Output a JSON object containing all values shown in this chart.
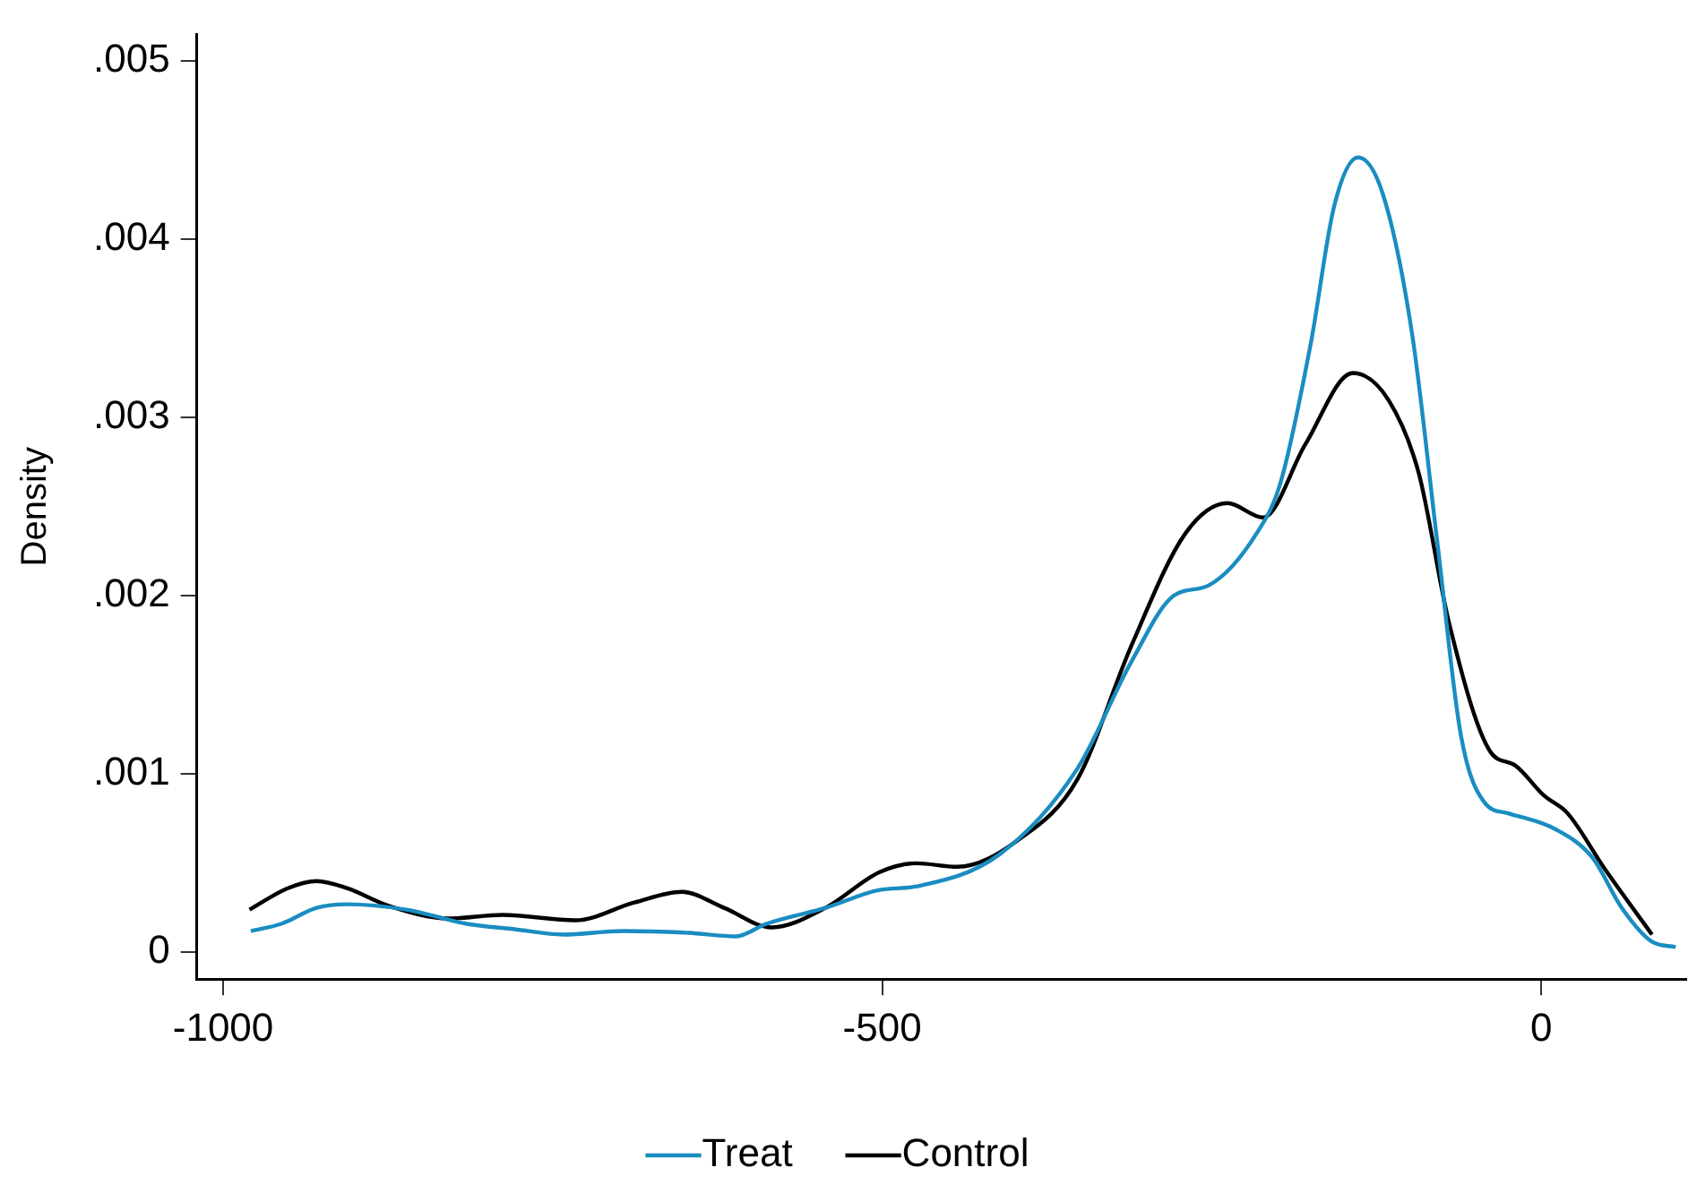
{
  "chart_data": {
    "type": "line",
    "ylabel": "Density",
    "legend": "bottom",
    "grid": false,
    "marker": "none",
    "line_style": "solid",
    "xlim": [
      -1020,
      110
    ],
    "xticks": [
      -1000,
      -500,
      0
    ],
    "ylim": [
      -0.00015,
      0.00515
    ],
    "yticks": [
      {
        "value": 0,
        "label": "0"
      },
      {
        "value": 0.001,
        "label": ".001"
      },
      {
        "value": 0.002,
        "label": ".002"
      },
      {
        "value": 0.003,
        "label": ".003"
      },
      {
        "value": 0.004,
        "label": ".004"
      },
      {
        "value": 0.005,
        "label": ".005"
      }
    ],
    "series": [
      {
        "name": "Treat",
        "color": "#1a8dc1",
        "x": [
          -979,
          -956,
          -929,
          -906,
          -861,
          -815,
          -779,
          -742,
          -697,
          -647,
          -611,
          -588,
          -543,
          -502,
          -474,
          -411,
          -352,
          -311,
          -279,
          -252,
          -216,
          -198,
          -175,
          -157,
          -139,
          -120,
          -98,
          -79,
          -61,
          -43,
          -25,
          11,
          39,
          61,
          84,
          102
        ],
        "values": [
          0.00012,
          0.00016,
          0.00025,
          0.00027,
          0.00024,
          0.00016,
          0.00013,
          0.0001,
          0.00012,
          0.00011,
          9e-05,
          0.00016,
          0.00025,
          0.00035,
          0.00037,
          0.00055,
          0.00103,
          0.00163,
          0.002,
          0.00206,
          0.00235,
          0.00263,
          0.00341,
          0.00419,
          0.00446,
          0.00425,
          0.00347,
          0.00231,
          0.00122,
          0.00084,
          0.00078,
          0.00069,
          0.00053,
          0.00025,
          6e-05,
          3e-05
        ]
      },
      {
        "name": "Control",
        "color": "#000000",
        "x": [
          -980,
          -951,
          -929,
          -906,
          -874,
          -829,
          -788,
          -733,
          -688,
          -652,
          -620,
          -584,
          -543,
          -502,
          -474,
          -443,
          -397,
          -352,
          -311,
          -270,
          -238,
          -211,
          -179,
          -143,
          -116,
          -93,
          -70,
          -39,
          -20,
          2,
          20,
          48,
          84
        ],
        "values": [
          0.00024,
          0.00036,
          0.0004,
          0.00036,
          0.00026,
          0.00019,
          0.00021,
          0.00018,
          0.00028,
          0.00034,
          0.00025,
          0.00014,
          0.00025,
          0.00045,
          0.0005,
          0.00048,
          0.00063,
          0.00097,
          0.00172,
          0.00235,
          0.00252,
          0.00244,
          0.00285,
          0.00325,
          0.0031,
          0.00269,
          0.00185,
          0.00113,
          0.00105,
          0.00088,
          0.00078,
          0.00047,
          0.0001
        ]
      }
    ]
  }
}
